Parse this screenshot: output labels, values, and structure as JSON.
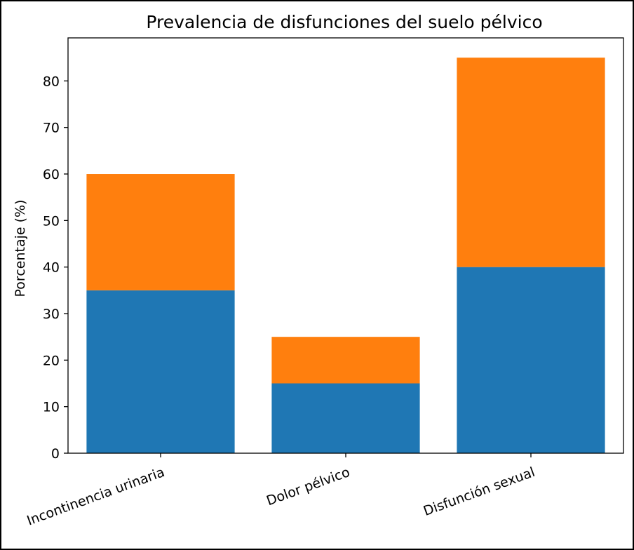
{
  "chart_data": {
    "type": "bar",
    "stacked": true,
    "title": "Prevalencia de disfunciones del suelo pélvico",
    "xlabel": "",
    "ylabel": "Porcentaje (%)",
    "categories": [
      "Incontinencia urinaria",
      "Dolor pélvico",
      "Disfunción sexual"
    ],
    "series": [
      {
        "color": "#1f77b4",
        "values": [
          35,
          15,
          40
        ]
      },
      {
        "color": "#ff7f0e",
        "values": [
          25,
          10,
          45
        ]
      }
    ],
    "ylim": [
      0,
      89.25
    ],
    "yticks": [
      "0",
      "10",
      "20",
      "30",
      "40",
      "50",
      "60",
      "70",
      "80"
    ],
    "grid": false,
    "legend": "none"
  }
}
